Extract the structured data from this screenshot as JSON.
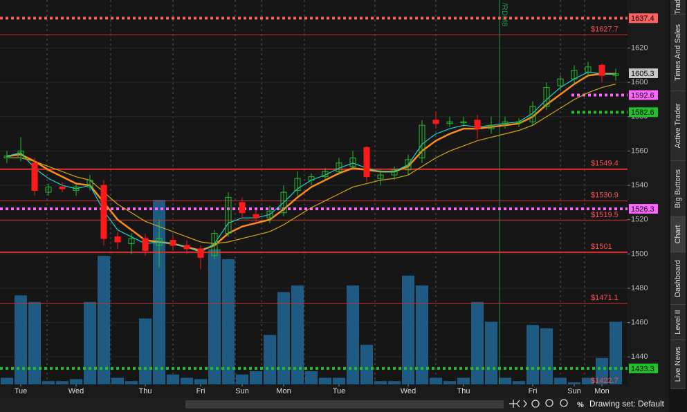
{
  "chart_data": {
    "type": "candlestick",
    "ylim": [
      1424,
      1648
    ],
    "yticks": [
      1440,
      1460,
      1480,
      1500,
      1520,
      1540,
      1560,
      1580,
      1600,
      1620
    ],
    "x_labels": [
      {
        "value": 1,
        "label": "Tue"
      },
      {
        "value": 5,
        "label": "Wed"
      },
      {
        "value": 10,
        "label": "Thu"
      },
      {
        "value": 14,
        "label": "Fri"
      },
      {
        "value": 17,
        "label": "Sun"
      },
      {
        "value": 20,
        "label": "Mon"
      },
      {
        "value": 24,
        "label": "Tue"
      },
      {
        "value": 29,
        "label": "Wed"
      },
      {
        "value": 33,
        "label": "Thu"
      },
      {
        "value": 38,
        "label": "Fri"
      },
      {
        "value": 41,
        "label": "Sun"
      },
      {
        "value": 43,
        "label": "Mon"
      }
    ],
    "up_color": "#22c02a",
    "down_color": "#ff1a1a",
    "open": [
      1556,
      1556,
      1553,
      1536,
      1539,
      1537,
      1539,
      1540,
      1510,
      1506,
      1509,
      1505,
      1508,
      1505,
      1503,
      1499,
      1512,
      1530,
      1523,
      1521,
      1524,
      1537,
      1543,
      1545,
      1548,
      1551,
      1562,
      1544,
      1546,
      1549,
      1556,
      1578,
      1576,
      1577,
      1578,
      1573,
      1576,
      1577,
      1577,
      1586,
      1598,
      1602,
      1606,
      1610,
      1604
    ],
    "high": [
      1560,
      1568,
      1556,
      1541,
      1542,
      1541,
      1546,
      1543,
      1513,
      1512,
      1512,
      1520,
      1511,
      1508,
      1505,
      1514,
      1536,
      1533,
      1526,
      1528,
      1540,
      1548,
      1547,
      1550,
      1556,
      1560,
      1563,
      1549,
      1551,
      1558,
      1578,
      1583,
      1580,
      1580,
      1581,
      1580,
      1580,
      1579,
      1589,
      1600,
      1604,
      1610,
      1612,
      1611,
      1608
    ],
    "low": [
      1553,
      1554,
      1534,
      1534,
      1536,
      1534,
      1537,
      1505,
      1503,
      1500,
      1499,
      1492,
      1502,
      1500,
      1491,
      1497,
      1510,
      1521,
      1518,
      1518,
      1522,
      1534,
      1540,
      1543,
      1546,
      1549,
      1542,
      1540,
      1543,
      1546,
      1553,
      1573,
      1574,
      1574,
      1567,
      1570,
      1573,
      1574,
      1575,
      1584,
      1595,
      1599,
      1603,
      1600,
      1601
    ],
    "close": [
      1557,
      1560,
      1537,
      1539,
      1538,
      1539,
      1543,
      1509,
      1507,
      1509,
      1502,
      1509,
      1505,
      1503,
      1498,
      1512,
      1533,
      1524,
      1521,
      1525,
      1536,
      1544,
      1545,
      1548,
      1553,
      1556,
      1545,
      1546,
      1549,
      1555,
      1575,
      1576,
      1577,
      1577,
      1573,
      1575,
      1577,
      1577,
      1586,
      1597,
      1602,
      1607,
      1609,
      1604,
      1605
    ],
    "volume_ylim": [
      0,
      300
    ],
    "volume_color": "#1d5b82",
    "volume": [
      10,
      135,
      125,
      5,
      5,
      8,
      125,
      195,
      10,
      5,
      100,
      280,
      15,
      10,
      8,
      205,
      190,
      15,
      20,
      75,
      140,
      150,
      20,
      10,
      10,
      150,
      60,
      5,
      5,
      165,
      150,
      10,
      5,
      10,
      125,
      95,
      10,
      5,
      90,
      85,
      10,
      3,
      10,
      40,
      95
    ],
    "series": [
      {
        "name": "fast",
        "color": "#ff8c1a",
        "values": [
          1557,
          1558,
          1554,
          1549,
          1545,
          1541,
          1540,
          1530,
          1520,
          1514,
          1508,
          1507,
          1506,
          1504,
          1502,
          1505,
          1512,
          1516,
          1518,
          1520,
          1526,
          1533,
          1539,
          1543,
          1547,
          1550,
          1549,
          1548,
          1548,
          1551,
          1560,
          1566,
          1570,
          1573,
          1573,
          1574,
          1575,
          1576,
          1580,
          1587,
          1593,
          1599,
          1604,
          1605,
          1605
        ]
      },
      {
        "name": "mid",
        "color": "#19d6d6",
        "values": [
          1557,
          1559,
          1550,
          1544,
          1540,
          1538,
          1540,
          1525,
          1514,
          1510,
          1506,
          1507,
          1506,
          1504,
          1501,
          1506,
          1518,
          1521,
          1521,
          1523,
          1530,
          1538,
          1543,
          1546,
          1550,
          1553,
          1550,
          1548,
          1548,
          1552,
          1564,
          1570,
          1573,
          1575,
          1574,
          1575,
          1576,
          1577,
          1582,
          1590,
          1597,
          1602,
          1606,
          1605,
          1605
        ]
      },
      {
        "name": "slow",
        "color": "#d4a514",
        "values": [
          1556,
          1556,
          1554,
          1551,
          1548,
          1545,
          1543,
          1536,
          1529,
          1524,
          1519,
          1516,
          1513,
          1510,
          1507,
          1506,
          1507,
          1509,
          1511,
          1513,
          1517,
          1522,
          1527,
          1531,
          1535,
          1539,
          1541,
          1543,
          1544,
          1546,
          1551,
          1556,
          1560,
          1563,
          1566,
          1568,
          1570,
          1572,
          1575,
          1580,
          1585,
          1590,
          1594,
          1597,
          1599
        ]
      }
    ],
    "levels": [
      {
        "value": 1637.4,
        "style": "dotted",
        "color": "#ff6060",
        "tag": true
      },
      {
        "value": {
          "value": 1627.7,
          "label": "$1627.7"
        },
        "style": "solid",
        "color": "#c83232"
      },
      {
        "value": 1605.3,
        "style": "none",
        "color": "#c8c8c8",
        "tag": true
      },
      {
        "value": 1592.6,
        "style": "dotted",
        "color": "#ff66ff",
        "tag": true,
        "from_index": 41
      },
      {
        "value": 1582.6,
        "style": "dotted",
        "color": "#22c02a",
        "tag": true,
        "from_index": 41
      },
      {
        "value": {
          "value": 1549.4,
          "label": "$1549.4"
        },
        "style": "thick",
        "color": "#e03030"
      },
      {
        "value": {
          "value": 1530.9,
          "label": "$1530.9"
        },
        "style": "solid",
        "color": "#c83232"
      },
      {
        "value": 1526.3,
        "style": "dotted",
        "color": "#ff66ff",
        "tag": true
      },
      {
        "value": {
          "value": 1519.5,
          "label": "$1519.5"
        },
        "style": "solid",
        "color": "#c83232"
      },
      {
        "value": {
          "value": 1501,
          "label": "$1501"
        },
        "style": "thick",
        "color": "#e03030"
      },
      {
        "value": {
          "value": 1471.1,
          "label": "$1471.1"
        },
        "style": "solid",
        "color": "#c83232"
      },
      {
        "value": 1433.3,
        "style": "dotted",
        "color": "#22c02a",
        "tag": true
      },
      {
        "value": {
          "value": 1422.7,
          "label": "$1422.7"
        },
        "style": "none",
        "color": "#c83232"
      }
    ],
    "marker": {
      "index": 35.6,
      "label": "/RDM8",
      "color": "#1f9a4a"
    }
  },
  "tabs": [
    "Trad",
    "Times And Sales",
    "Active Trader",
    "Big Buttons",
    "Chart",
    "Dashboard",
    "Level II",
    "Live News"
  ],
  "toolbar": {
    "drawing_set": "Drawing set: Default"
  }
}
